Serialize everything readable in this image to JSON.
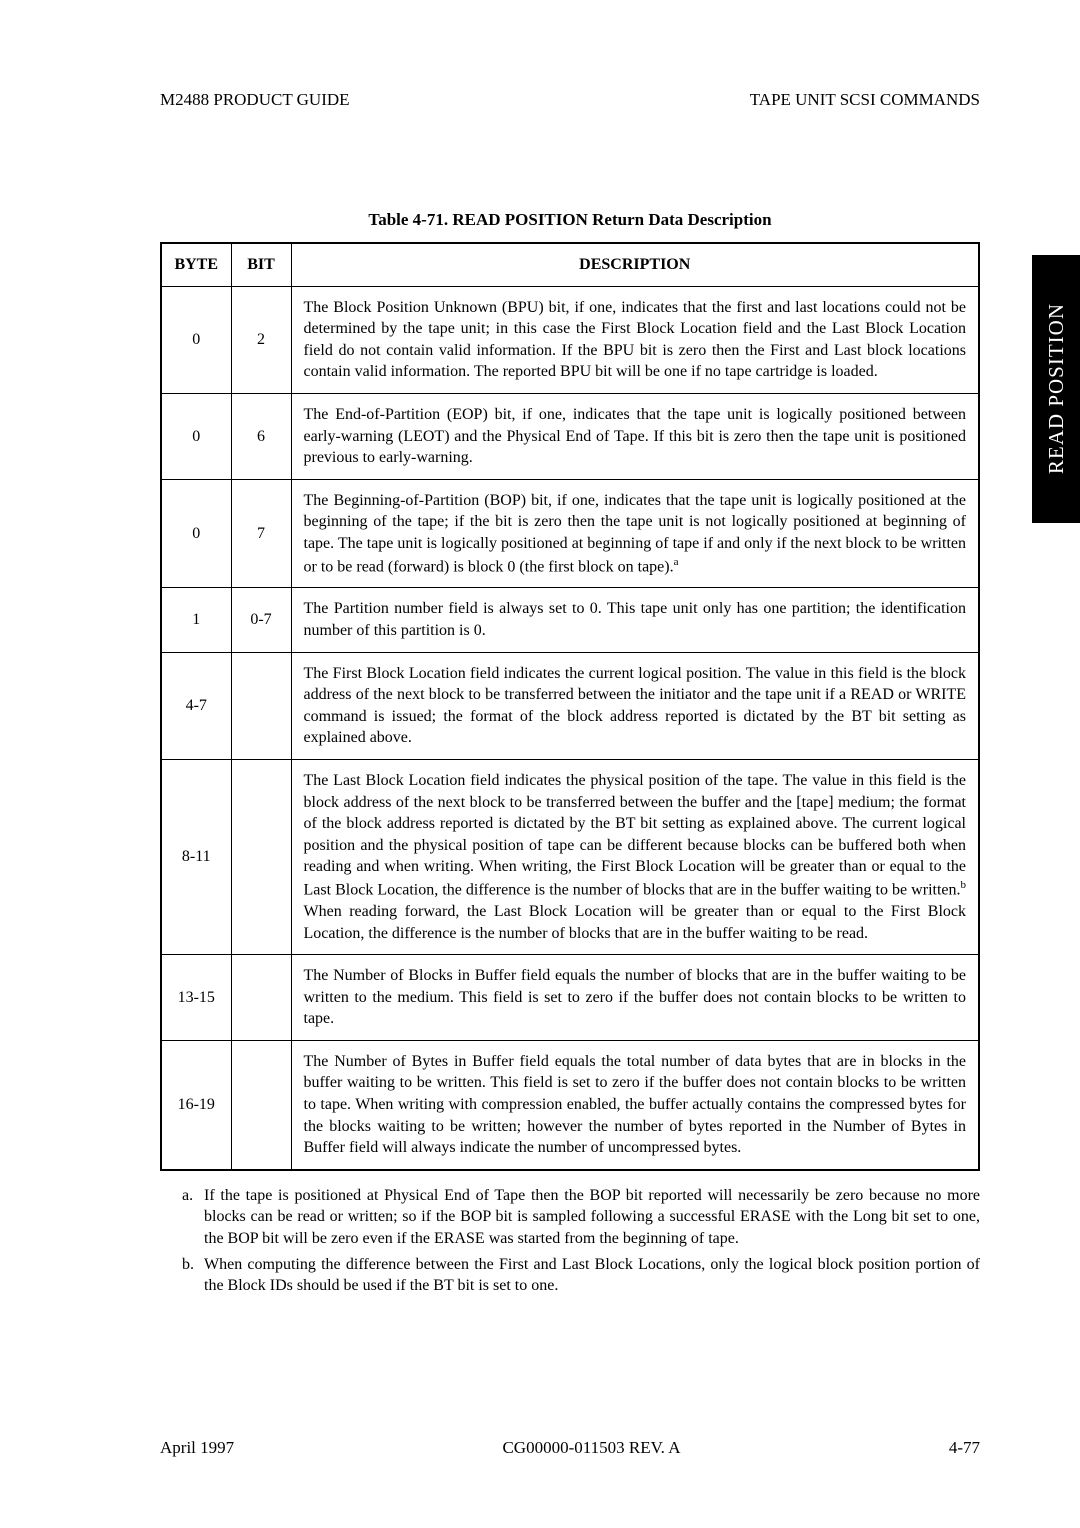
{
  "header": {
    "left": "M2488 PRODUCT GUIDE",
    "right": "TAPE UNIT SCSI COMMANDS"
  },
  "side_tab": "READ POSITION",
  "table": {
    "caption": "Table 4-71.  READ POSITION Return Data Description",
    "columns": [
      "BYTE",
      "BIT",
      "DESCRIPTION"
    ],
    "rows": [
      {
        "byte": "0",
        "bit": "2",
        "desc": "The Block Position Unknown (BPU) bit, if one, indicates that the first and last locations could not be determined by the tape unit; in this case the First Block Location field and the Last Block Location field do not contain valid information. If the BPU bit is zero then the First and Last block locations contain valid information. The reported BPU bit will be one if no tape cartridge is loaded.",
        "sup": ""
      },
      {
        "byte": "0",
        "bit": "6",
        "desc": "The End-of-Partition (EOP) bit, if one, indicates that the tape unit is logically positioned between early-warning (LEOT) and the Physical End of Tape. If this bit is zero then the tape unit is positioned previous to early-warning.",
        "sup": ""
      },
      {
        "byte": "0",
        "bit": "7",
        "desc": "The Beginning-of-Partition (BOP) bit, if one, indicates that the tape unit is logically positioned at the beginning of the tape; if the bit is zero then the tape unit is not logically positioned at beginning of tape. The tape unit is logically positioned at beginning of tape if and only if the next block to be written or to be read (forward) is block 0 (the first block on tape).",
        "sup": "a"
      },
      {
        "byte": "1",
        "bit": "0-7",
        "desc": "The Partition number field is always set to 0. This tape unit only has one partition; the identification number of this partition is 0.",
        "sup": ""
      },
      {
        "byte": "4-7",
        "bit": "",
        "desc": "The First Block Location field indicates the current logical position. The value in this field is the block address of the next block to be transferred between the initiator and the tape unit if a READ or WRITE command is issued; the format of the block address reported is dictated by the BT bit setting as explained above.",
        "sup": ""
      },
      {
        "byte": "8-11",
        "bit": "",
        "desc_part1": "The Last Block Location field indicates the physical position of the tape. The value in this field is the block address of the next block to be transferred between the buffer and the [tape] medium; the format of the block address reported is dictated by the BT bit setting as explained above. The current logical position and the physical position of tape can be different because blocks can be buffered both when reading and when writing. When writing, the First Block Location will be greater than or equal to the Last Block Location, the difference is the number of blocks that are in the buffer waiting to be written.",
        "sup": "b",
        "desc_part2": " When reading forward, the Last Block Location will be greater than or equal to the First Block Location, the difference is the number of blocks that are in the buffer waiting to be read."
      },
      {
        "byte": "13-15",
        "bit": "",
        "desc": "The Number of Blocks in Buffer field equals the number of blocks that are in the buffer waiting to be written to the medium. This field is set to zero if the buffer does not contain blocks to be written to tape.",
        "sup": ""
      },
      {
        "byte": "16-19",
        "bit": "",
        "desc": "The Number of Bytes in Buffer field equals the total number of data bytes that are in blocks in the buffer waiting to be written. This field is set to zero if the buffer does not contain blocks to be written to tape. When writing with compression enabled, the buffer actually contains the compressed bytes for the blocks waiting to be written; however the number of bytes reported in the Number of Bytes in Buffer field will always indicate the number of uncompressed bytes.",
        "sup": ""
      }
    ]
  },
  "footnotes": {
    "a_marker": "a.",
    "a_text": "If the tape is positioned at Physical End of Tape then the BOP bit reported will necessarily be zero because no more blocks can be read or written; so if the BOP bit is sampled following a successful ERASE with the Long bit set to one, the BOP bit will be zero even if the ERASE was started from the beginning of tape.",
    "b_marker": "b.",
    "b_text": "When computing the difference between the First and Last Block Locations, only the logical block position portion of the Block IDs should be used if the BT bit is set to one."
  },
  "footer": {
    "left": "April 1997",
    "center": "CG00000-011503 REV. A",
    "right": "4-77"
  }
}
